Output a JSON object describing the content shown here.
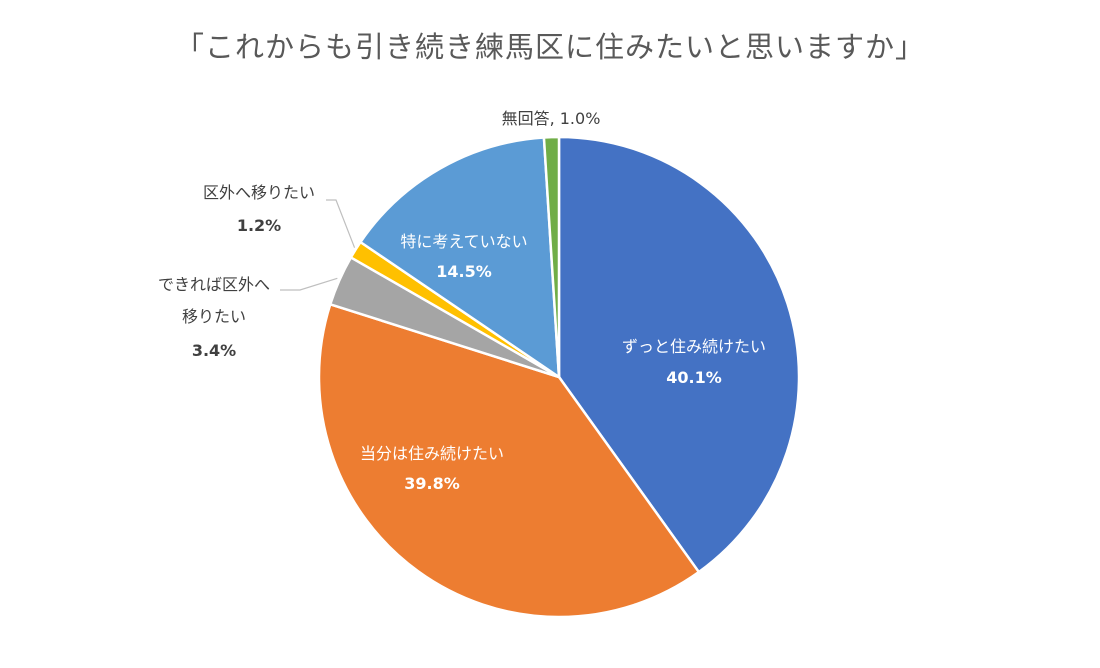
{
  "chart_data": {
    "type": "pie",
    "title": "「これからも引き続き練馬区に住みたいと思いますか」",
    "unit": "%",
    "slices": [
      {
        "label": "ずっと住み続けたい",
        "value": 40.1,
        "value_label": "40.1%",
        "color": "#4472C4"
      },
      {
        "label": "当分は住み続けたい",
        "value": 39.8,
        "value_label": "39.8%",
        "color": "#ED7D31"
      },
      {
        "label": "できれば区外へ移りたい",
        "label_lines": [
          "できれば区外へ",
          "移りたい"
        ],
        "value": 3.4,
        "value_label": "3.4%",
        "color": "#A5A5A5"
      },
      {
        "label": "区外へ移りたい",
        "value": 1.2,
        "value_label": "1.2%",
        "color": "#FFC000"
      },
      {
        "label": "特に考えていない",
        "value": 14.5,
        "value_label": "14.5%",
        "color": "#5B9BD5"
      },
      {
        "label": "無回答",
        "value": 1.0,
        "value_label": "1.0%",
        "label_text": "無回答, 1.0%",
        "color": "#70AD47"
      }
    ],
    "start_angle_deg": 0,
    "direction": "clockwise",
    "legend": "none",
    "data_labels": true
  }
}
